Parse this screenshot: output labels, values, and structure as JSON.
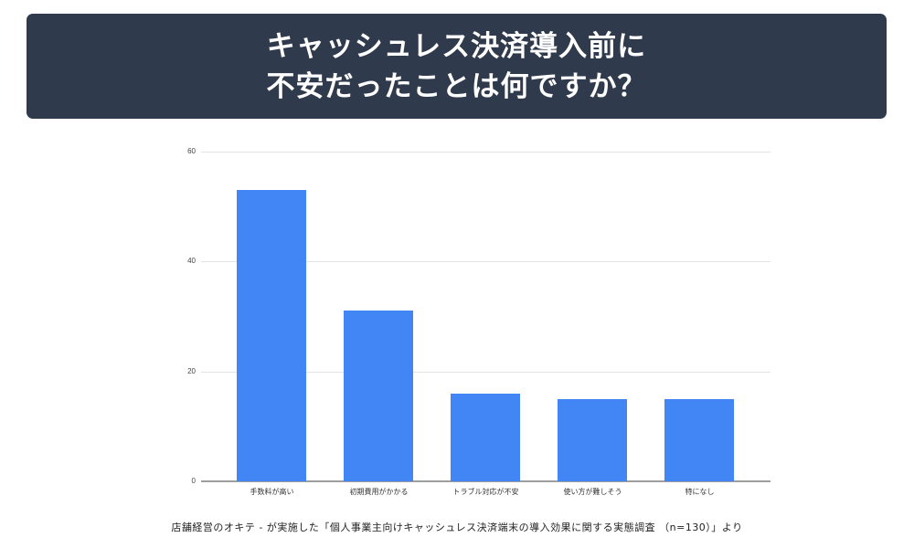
{
  "title": {
    "line1": "キャッシュレス決済導入前に",
    "line2": "不安だったことは何ですか？"
  },
  "source_note": "店舗経営のオキテ - が実施した「個人事業主向けキャッシュレス決済端末の導入効果に関する実態調査 （n=130）」より",
  "colors": {
    "title_bg": "#2f3b4d",
    "bar": "#4285f4",
    "grid": "#e3e3e3",
    "axis": "#9e9e9e"
  },
  "chart_data": {
    "type": "bar",
    "title": "キャッシュレス決済導入前に不安だったことは何ですか？",
    "categories": [
      "手数料が高い",
      "初期費用がかかる",
      "トラブル対応が不安",
      "使い方が難しそう",
      "特になし"
    ],
    "values": [
      53,
      31,
      16,
      15,
      15
    ],
    "xlabel": "",
    "ylabel": "",
    "ylim": [
      0,
      60
    ],
    "yticks": [
      0,
      20,
      40,
      60
    ],
    "grid": true,
    "legend": null
  }
}
